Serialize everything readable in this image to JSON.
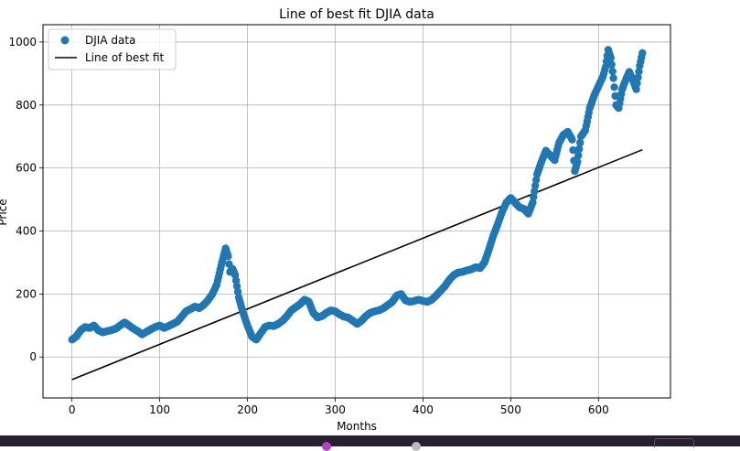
{
  "chart_data": {
    "type": "scatter",
    "title": "Line of best fit DJIA data",
    "xlabel": "Months",
    "ylabel": "Price",
    "xlim": [
      -33,
      682
    ],
    "ylim": [
      -130,
      1055
    ],
    "x_ticks": [
      0,
      100,
      200,
      300,
      400,
      500,
      600
    ],
    "y_ticks": [
      0,
      200,
      400,
      600,
      800,
      1000
    ],
    "grid": true,
    "legend_position": "top-left",
    "legend": [
      "DJIA data",
      "Line of best fit"
    ],
    "colors": {
      "scatter": "#1f77b4",
      "fit_line": "#000000"
    },
    "series": [
      {
        "name": "DJIA data",
        "kind": "scatter",
        "points": [
          [
            0,
            55
          ],
          [
            5,
            65
          ],
          [
            10,
            85
          ],
          [
            15,
            95
          ],
          [
            20,
            92
          ],
          [
            25,
            100
          ],
          [
            30,
            85
          ],
          [
            35,
            78
          ],
          [
            40,
            82
          ],
          [
            45,
            85
          ],
          [
            50,
            90
          ],
          [
            55,
            100
          ],
          [
            60,
            110
          ],
          [
            65,
            100
          ],
          [
            70,
            90
          ],
          [
            75,
            82
          ],
          [
            80,
            72
          ],
          [
            85,
            80
          ],
          [
            90,
            88
          ],
          [
            95,
            95
          ],
          [
            100,
            100
          ],
          [
            105,
            92
          ],
          [
            110,
            98
          ],
          [
            115,
            105
          ],
          [
            120,
            112
          ],
          [
            125,
            128
          ],
          [
            130,
            145
          ],
          [
            135,
            152
          ],
          [
            140,
            160
          ],
          [
            145,
            155
          ],
          [
            150,
            165
          ],
          [
            155,
            180
          ],
          [
            160,
            200
          ],
          [
            165,
            230
          ],
          [
            170,
            290
          ],
          [
            175,
            345
          ],
          [
            178,
            320
          ],
          [
            180,
            270
          ],
          [
            183,
            280
          ],
          [
            186,
            260
          ],
          [
            190,
            190
          ],
          [
            195,
            140
          ],
          [
            200,
            100
          ],
          [
            205,
            65
          ],
          [
            210,
            55
          ],
          [
            215,
            75
          ],
          [
            220,
            95
          ],
          [
            225,
            100
          ],
          [
            230,
            98
          ],
          [
            235,
            105
          ],
          [
            240,
            115
          ],
          [
            245,
            130
          ],
          [
            250,
            148
          ],
          [
            255,
            158
          ],
          [
            260,
            168
          ],
          [
            265,
            182
          ],
          [
            270,
            175
          ],
          [
            275,
            140
          ],
          [
            280,
            125
          ],
          [
            285,
            130
          ],
          [
            290,
            140
          ],
          [
            295,
            148
          ],
          [
            300,
            145
          ],
          [
            305,
            135
          ],
          [
            310,
            128
          ],
          [
            315,
            125
          ],
          [
            320,
            115
          ],
          [
            325,
            105
          ],
          [
            330,
            115
          ],
          [
            335,
            130
          ],
          [
            340,
            140
          ],
          [
            345,
            145
          ],
          [
            350,
            148
          ],
          [
            355,
            155
          ],
          [
            360,
            165
          ],
          [
            365,
            175
          ],
          [
            370,
            195
          ],
          [
            375,
            200
          ],
          [
            380,
            180
          ],
          [
            385,
            175
          ],
          [
            390,
            178
          ],
          [
            395,
            182
          ],
          [
            400,
            178
          ],
          [
            405,
            175
          ],
          [
            410,
            182
          ],
          [
            415,
            195
          ],
          [
            420,
            210
          ],
          [
            425,
            225
          ],
          [
            430,
            245
          ],
          [
            435,
            260
          ],
          [
            440,
            268
          ],
          [
            445,
            270
          ],
          [
            450,
            275
          ],
          [
            455,
            278
          ],
          [
            460,
            285
          ],
          [
            465,
            282
          ],
          [
            470,
            300
          ],
          [
            475,
            340
          ],
          [
            480,
            385
          ],
          [
            485,
            420
          ],
          [
            490,
            460
          ],
          [
            495,
            490
          ],
          [
            500,
            505
          ],
          [
            505,
            490
          ],
          [
            510,
            475
          ],
          [
            515,
            470
          ],
          [
            520,
            455
          ],
          [
            525,
            490
          ],
          [
            530,
            580
          ],
          [
            535,
            620
          ],
          [
            540,
            655
          ],
          [
            545,
            640
          ],
          [
            550,
            625
          ],
          [
            555,
            680
          ],
          [
            560,
            705
          ],
          [
            565,
            715
          ],
          [
            570,
            690
          ],
          [
            573,
            590
          ],
          [
            576,
            620
          ],
          [
            580,
            700
          ],
          [
            585,
            720
          ],
          [
            590,
            790
          ],
          [
            595,
            830
          ],
          [
            600,
            860
          ],
          [
            605,
            890
          ],
          [
            608,
            920
          ],
          [
            611,
            975
          ],
          [
            614,
            950
          ],
          [
            617,
            885
          ],
          [
            620,
            800
          ],
          [
            623,
            790
          ],
          [
            627,
            850
          ],
          [
            631,
            880
          ],
          [
            635,
            905
          ],
          [
            639,
            880
          ],
          [
            643,
            850
          ],
          [
            647,
            925
          ],
          [
            650,
            965
          ]
        ]
      },
      {
        "name": "Line of best fit",
        "kind": "line",
        "points": [
          [
            0,
            -72
          ],
          [
            650,
            658
          ]
        ]
      }
    ]
  }
}
